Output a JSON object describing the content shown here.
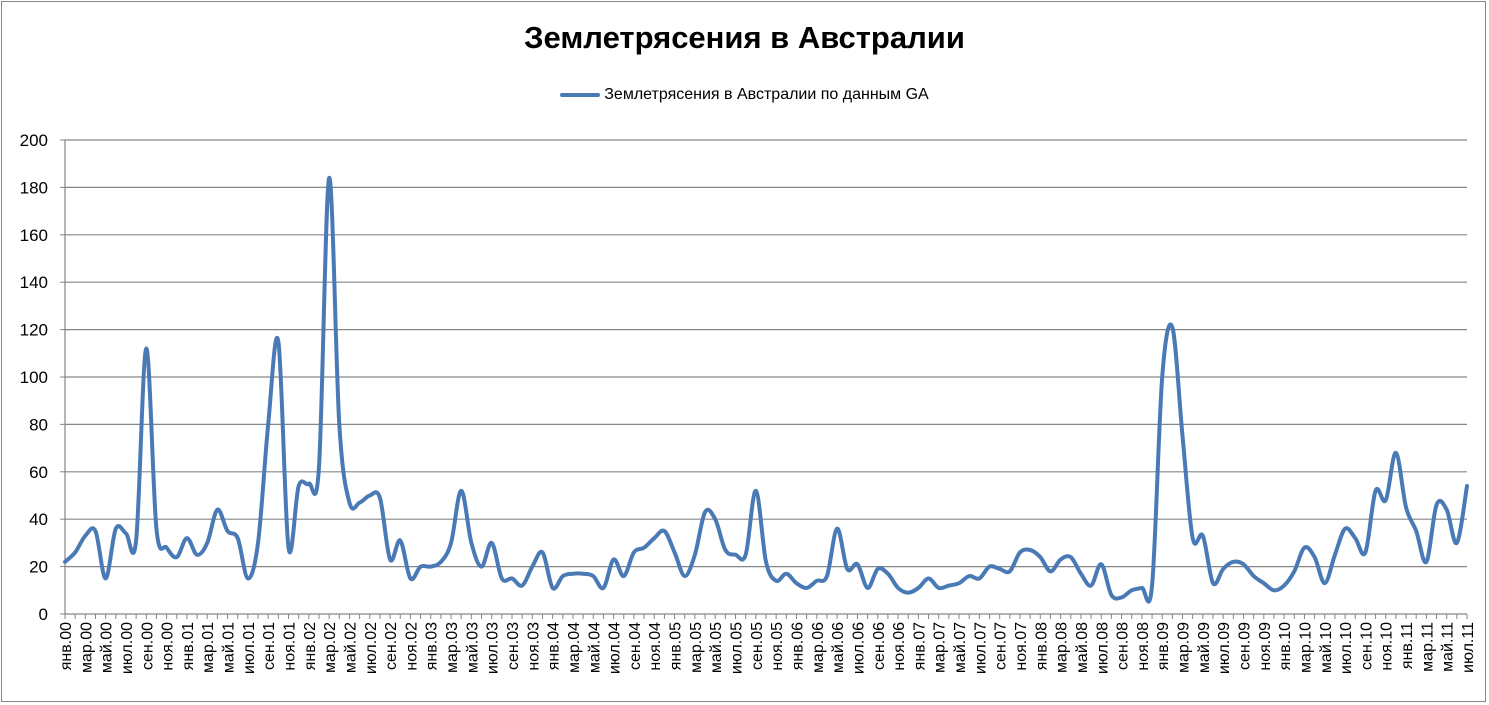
{
  "chart_data": {
    "type": "line",
    "title": "Землетрясения в Австралии",
    "legend_position": "top",
    "series": [
      {
        "name": "Землетрясения в Австралии по данным GA",
        "color": "#4a7ab5",
        "smoothed": true,
        "values": [
          22,
          26,
          33,
          35,
          15,
          36,
          34,
          31,
          112,
          36,
          28,
          24,
          32,
          25,
          30,
          44,
          35,
          32,
          15,
          30,
          80,
          115,
          28,
          54,
          55,
          62,
          184,
          80,
          47,
          47,
          50,
          49,
          23,
          31,
          15,
          20,
          20,
          22,
          30,
          52,
          30,
          20,
          30,
          15,
          15,
          12,
          20,
          26,
          11,
          16,
          17,
          17,
          16,
          11,
          23,
          16,
          26,
          28,
          32,
          35,
          26,
          16,
          25,
          43,
          40,
          27,
          25,
          25,
          52,
          22,
          14,
          17,
          13,
          11,
          14,
          16,
          36,
          19,
          21,
          11,
          19,
          17,
          11,
          9,
          11,
          15,
          11,
          12,
          13,
          16,
          15,
          20,
          19,
          18,
          26,
          27,
          24,
          18,
          23,
          24,
          17,
          12,
          21,
          8,
          7,
          10,
          11,
          12,
          100,
          121,
          75,
          32,
          33,
          13,
          19,
          22,
          21,
          16,
          13,
          10,
          12,
          18,
          28,
          24,
          13,
          25,
          36,
          32,
          26,
          52,
          48,
          68,
          45,
          35,
          22,
          46,
          44,
          30,
          54
        ]
      }
    ],
    "x_start": "янв.00",
    "x_end": "июл.11",
    "x_interval": "month",
    "x_tick_labels": [
      "янв.00",
      "мар.00",
      "май.00",
      "июл.00",
      "сен.00",
      "ноя.00",
      "янв.01",
      "мар.01",
      "май.01",
      "июл.01",
      "сен.01",
      "ноя.01",
      "янв.02",
      "мар.02",
      "май.02",
      "июл.02",
      "сен.02",
      "ноя.02",
      "янв.03",
      "мар.03",
      "май.03",
      "июл.03",
      "сен.03",
      "ноя.03",
      "янв.04",
      "мар.04",
      "май.04",
      "июл.04",
      "сен.04",
      "ноя.04",
      "янв.05",
      "мар.05",
      "май.05",
      "июл.05",
      "сен.05",
      "ноя.05",
      "янв.06",
      "мар.06",
      "май.06",
      "июл.06",
      "сен.06",
      "ноя.06",
      "янв.07",
      "мар.07",
      "май.07",
      "июл.07",
      "сен.07",
      "ноя.07",
      "янв.08",
      "мар.08",
      "май.08",
      "июл.08",
      "сен.08",
      "ноя.08",
      "янв.09",
      "мар.09",
      "май.09",
      "июл.09",
      "сен.09",
      "ноя.09",
      "янв.10",
      "мар.10",
      "май.10",
      "июл.10",
      "сен.10",
      "ноя.10",
      "янв.11",
      "мар.11",
      "май.11",
      "июл.11"
    ],
    "y_tick_labels": [
      "0",
      "20",
      "40",
      "60",
      "80",
      "100",
      "120",
      "140",
      "160",
      "180",
      "200"
    ],
    "ylim": [
      0,
      200
    ],
    "grid": "horizontal",
    "xlabel": "",
    "ylabel": ""
  }
}
